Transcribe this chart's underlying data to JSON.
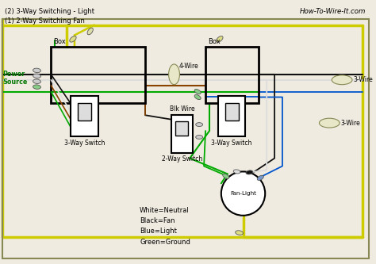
{
  "title_left": "(2) 3-Way Switching - Light\n(1) 2-Way Switching Fan",
  "title_right": "How-To-Wire-It.com",
  "bg_color": "#f0ebe0",
  "wire_colors": {
    "yellow": "#cccc00",
    "green": "#00aa00",
    "black": "#111111",
    "white": "#dddddd",
    "red": "#cc0000",
    "blue": "#0055cc",
    "brown": "#884400",
    "gray": "#888888"
  },
  "labels": {
    "power_source": "Power\nSource",
    "box1": "Box",
    "box2": "Box",
    "four_wire": "4-Wire",
    "three_wire_top": "3-Wire",
    "three_wire_mid": "3-Wire",
    "blk_wire": "Blk Wire",
    "switch1": "3-Way Switch",
    "switch2": "2-Way Switch",
    "switch3": "3-Way Switch",
    "fan_light": "Fan-Light",
    "legend": "White=Neutral\nBlack=Fan\nBlue=Light\nGreen=Ground"
  }
}
